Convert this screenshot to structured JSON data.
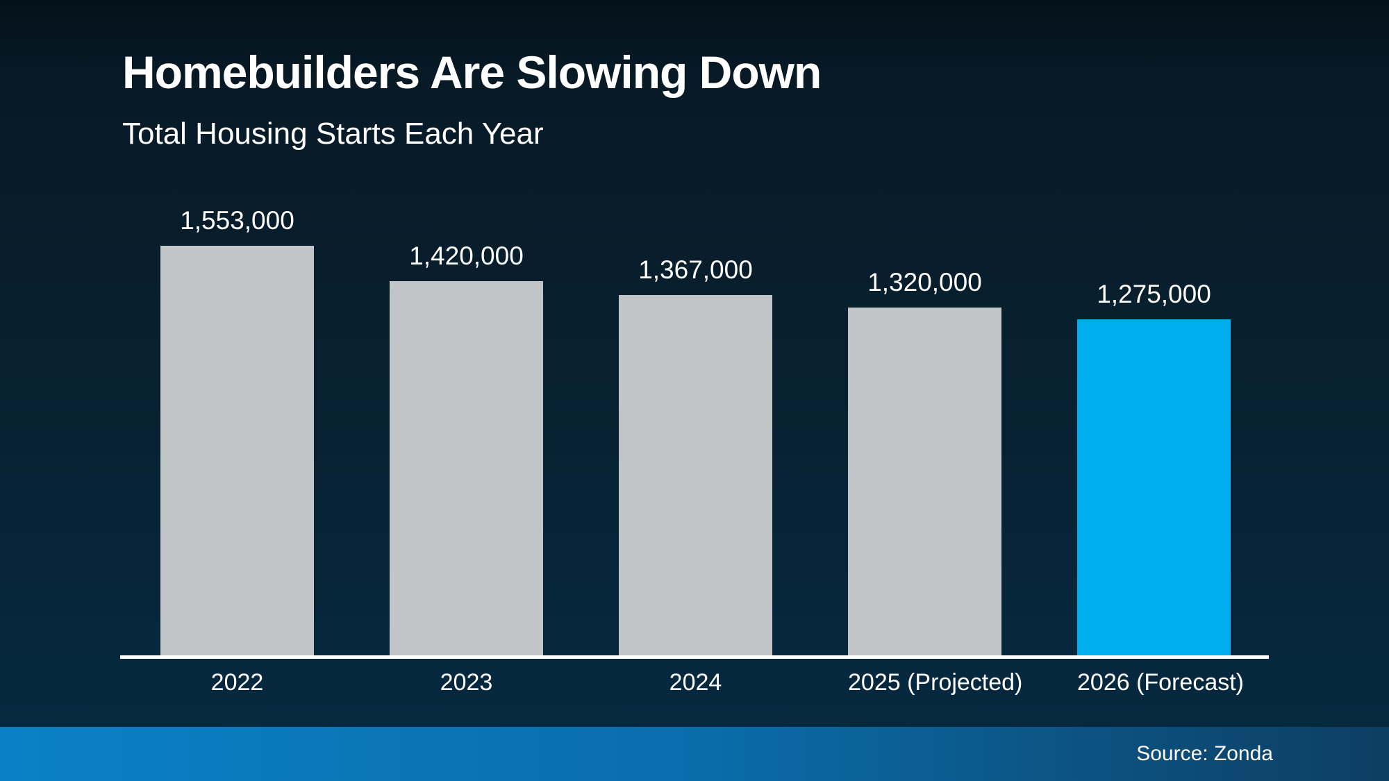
{
  "page": {
    "title": "Homebuilders Are Slowing Down",
    "subtitle": "Total Housing Starts Each Year",
    "source": "Source: Zonda"
  },
  "colors": {
    "background_top": "#071a26",
    "background_bottom": "#05283d",
    "bar_default": "#c1c5c7",
    "bar_highlight": "#00aeef",
    "axis": "#ffffff",
    "footer_gradient_left": "#0a81c6",
    "footer_gradient_right": "#0d3e61",
    "text": "#ffffff"
  },
  "chart_data": {
    "type": "bar",
    "title": "Homebuilders Are Slowing Down",
    "subtitle": "Total Housing Starts Each Year",
    "categories": [
      "2022",
      "2023",
      "2024",
      "2025 (Projected)",
      "2026 (Forecast)"
    ],
    "values": [
      1553000,
      1420000,
      1367000,
      1320000,
      1275000
    ],
    "value_labels": [
      "1,553,000",
      "1,420,000",
      "1,367,000",
      "1,320,000",
      "1,275,000"
    ],
    "highlighted_index": 4,
    "bar_color_default": "#c1c5c7",
    "bar_color_highlight": "#00aeef",
    "ylim": [
      0,
      1553000
    ],
    "grid": false,
    "legend": false,
    "xlabel": "",
    "ylabel": "",
    "source": "Source: Zonda"
  }
}
